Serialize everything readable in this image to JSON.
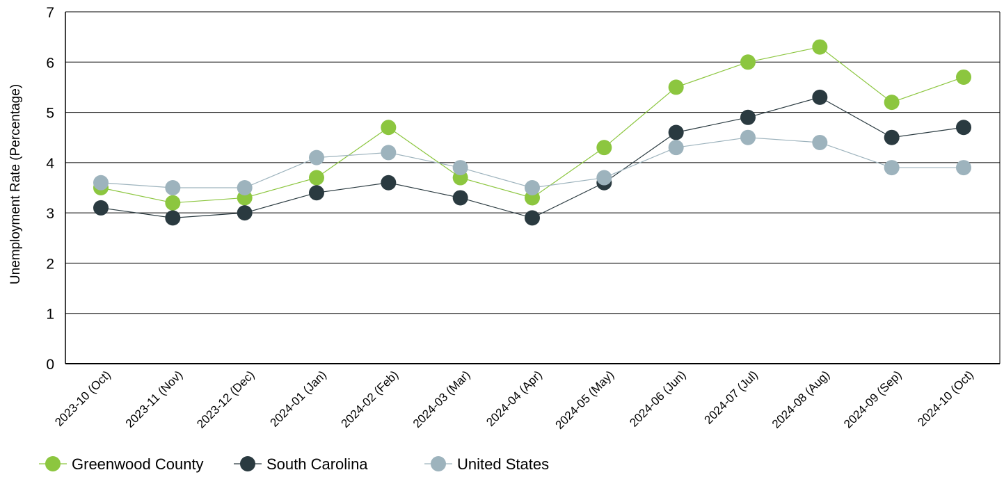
{
  "chart_data": {
    "type": "line",
    "title": "",
    "xlabel": "",
    "ylabel": "Unemployment Rate (Percentage)",
    "ylim": [
      0,
      7
    ],
    "yticks": [
      0,
      1,
      2,
      3,
      4,
      5,
      6,
      7
    ],
    "grid": true,
    "legend_position": "bottom-left",
    "categories": [
      "2023-10 (Oct)",
      "2023-11 (Nov)",
      "2023-12 (Dec)",
      "2024-01 (Jan)",
      "2024-02 (Feb)",
      "2024-03 (Mar)",
      "2024-04 (Apr)",
      "2024-05 (May)",
      "2024-06 (Jun)",
      "2024-07 (Jul)",
      "2024-08 (Aug)",
      "2024-09 (Sep)",
      "2024-10 (Oct)"
    ],
    "series": [
      {
        "name": "Greenwood County",
        "color": "#8cc63f",
        "values": [
          3.5,
          3.2,
          3.3,
          3.7,
          4.7,
          3.7,
          3.3,
          4.3,
          5.5,
          6.0,
          6.3,
          5.2,
          5.7
        ]
      },
      {
        "name": "South Carolina",
        "color": "#2a3a40",
        "values": [
          3.1,
          2.9,
          3.0,
          3.4,
          3.6,
          3.3,
          2.9,
          3.6,
          4.6,
          4.9,
          5.3,
          4.5,
          4.7
        ]
      },
      {
        "name": "United States",
        "color": "#9db3bd",
        "values": [
          3.6,
          3.5,
          3.5,
          4.1,
          4.2,
          3.9,
          3.5,
          3.7,
          4.3,
          4.5,
          4.4,
          3.9,
          3.9
        ]
      }
    ]
  }
}
